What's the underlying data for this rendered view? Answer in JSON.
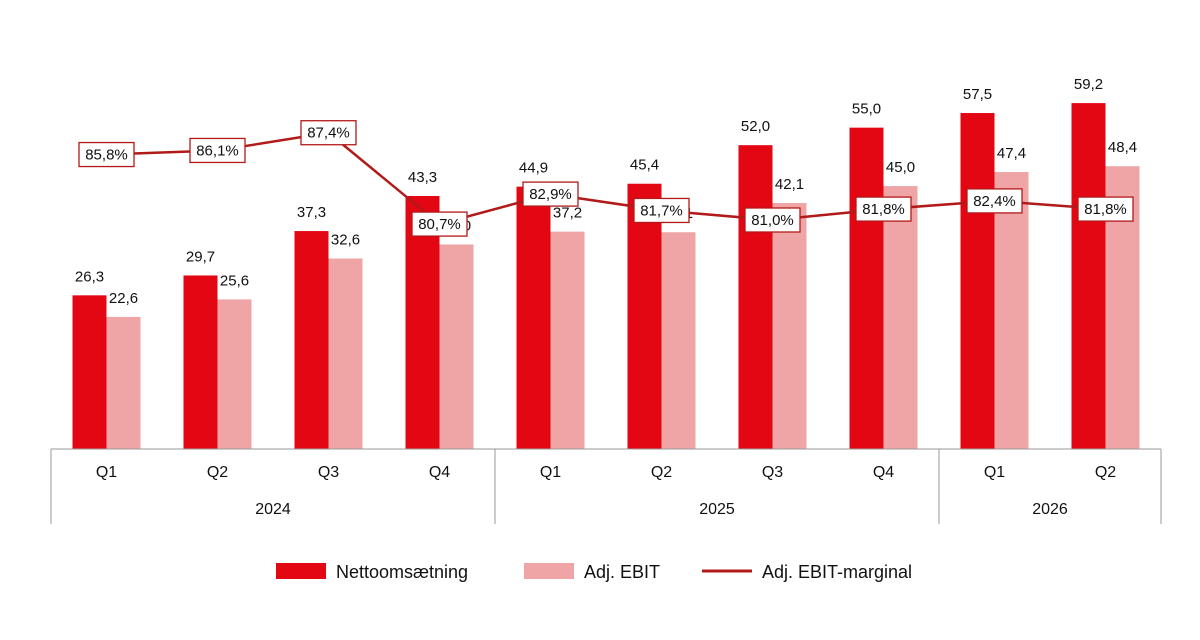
{
  "chart_data": {
    "type": "bar",
    "categories": [
      "Q1",
      "Q2",
      "Q3",
      "Q4",
      "Q1",
      "Q2",
      "Q3",
      "Q4",
      "Q1",
      "Q2"
    ],
    "groups": [
      {
        "label": "2024",
        "count": 4
      },
      {
        "label": "2025",
        "count": 4
      },
      {
        "label": "2026",
        "count": 2
      }
    ],
    "series": [
      {
        "name": "Nettoomsætning",
        "type": "bar",
        "values": [
          26.3,
          29.7,
          37.3,
          43.3,
          44.9,
          45.4,
          52.0,
          55.0,
          57.5,
          59.2
        ],
        "labels": [
          "26,3",
          "29,7",
          "37,3",
          "43,3",
          "44,9",
          "45,4",
          "52,0",
          "55,0",
          "57,5",
          "59,2"
        ],
        "color": "#E30613"
      },
      {
        "name": "Adj. EBIT",
        "type": "bar",
        "values": [
          22.6,
          25.6,
          32.6,
          35.0,
          37.2,
          37.1,
          42.1,
          45.0,
          47.4,
          48.4
        ],
        "labels": [
          "22,6",
          "25,6",
          "32,6",
          "35,0",
          "37,2",
          "37,1",
          "42,1",
          "45,0",
          "47,4",
          "48,4"
        ],
        "color": "#EFA5A5"
      },
      {
        "name": "Adj. EBIT-marginal",
        "type": "line",
        "values": [
          85.8,
          86.1,
          87.4,
          80.7,
          82.9,
          81.7,
          81.0,
          81.8,
          82.4,
          81.8
        ],
        "labels": [
          "85,8%",
          "86,1%",
          "87,4%",
          "80,7%",
          "82,9%",
          "81,7%",
          "81,0%",
          "81,8%",
          "82,4%",
          "81,8%"
        ],
        "color": "#B21A1A"
      }
    ],
    "bar_ylim": [
      0,
      70
    ],
    "line_ylim": [
      70,
      92
    ],
    "legend": "bottom",
    "grid": false,
    "title": "",
    "xlabel": "",
    "ylabel": ""
  }
}
